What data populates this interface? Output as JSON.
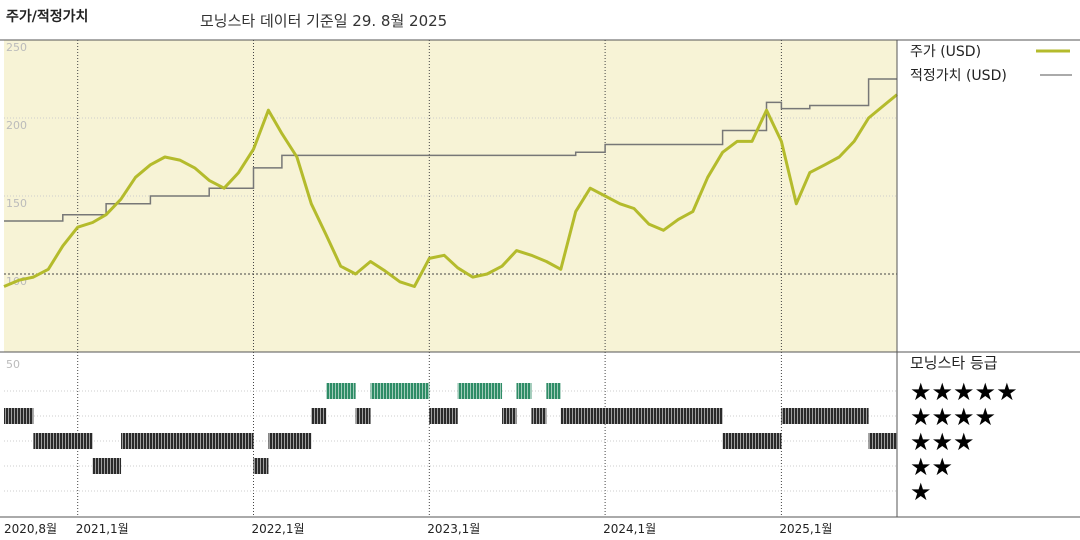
{
  "header": {
    "title": "주가/적정가치",
    "subtitle": "모닝스타 데이터 기준일 29. 8월 2025"
  },
  "colors": {
    "panel_bg": "#f7f3d6",
    "price_line": "#b4bb2c",
    "fair_value_line": "#777777",
    "star5_bar": "#2e8c66",
    "star_bar": "#2a2a2a",
    "grid": "#555555",
    "gridline_light": "#cccccc"
  },
  "chart_data": [
    {
      "type": "line",
      "name": "price-fair-value",
      "x_ticks": [
        "2020,8월",
        "2021,1월",
        "2022,1월",
        "2023,1월",
        "2024,1월",
        "2025,1월"
      ],
      "x_tick_dates": [
        "2020-08-01",
        "2021-01-01",
        "2022-01-01",
        "2023-01-01",
        "2024-01-01",
        "2025-01-01"
      ],
      "x_range": [
        "2020-08-01",
        "2025-08-29"
      ],
      "y_ticks": [
        "250",
        "200",
        "150",
        "100"
      ],
      "ylim": [
        50,
        250
      ],
      "grid": true,
      "legend": {
        "placement": "right",
        "entries": [
          "주가 (USD)",
          "적정가치 (USD)"
        ]
      },
      "series": [
        {
          "name": "주가 (USD)",
          "points": [
            [
              "2020-08-01",
              92
            ],
            [
              "2020-09-01",
              96
            ],
            [
              "2020-10-01",
              98
            ],
            [
              "2020-11-01",
              103
            ],
            [
              "2020-12-01",
              118
            ],
            [
              "2021-01-01",
              130
            ],
            [
              "2021-02-01",
              133
            ],
            [
              "2021-03-01",
              138
            ],
            [
              "2021-04-01",
              148
            ],
            [
              "2021-05-01",
              162
            ],
            [
              "2021-06-01",
              170
            ],
            [
              "2021-07-01",
              175
            ],
            [
              "2021-08-01",
              173
            ],
            [
              "2021-09-01",
              168
            ],
            [
              "2021-10-01",
              160
            ],
            [
              "2021-11-01",
              155
            ],
            [
              "2021-12-01",
              165
            ],
            [
              "2022-01-01",
              180
            ],
            [
              "2022-02-01",
              205
            ],
            [
              "2022-03-01",
              190
            ],
            [
              "2022-04-01",
              175
            ],
            [
              "2022-05-01",
              145
            ],
            [
              "2022-06-01",
              125
            ],
            [
              "2022-07-01",
              105
            ],
            [
              "2022-08-01",
              100
            ],
            [
              "2022-09-01",
              108
            ],
            [
              "2022-10-01",
              102
            ],
            [
              "2022-11-01",
              95
            ],
            [
              "2022-12-01",
              92
            ],
            [
              "2023-01-01",
              110
            ],
            [
              "2023-02-01",
              112
            ],
            [
              "2023-03-01",
              104
            ],
            [
              "2023-04-01",
              98
            ],
            [
              "2023-05-01",
              100
            ],
            [
              "2023-06-01",
              105
            ],
            [
              "2023-07-01",
              115
            ],
            [
              "2023-08-01",
              112
            ],
            [
              "2023-09-01",
              108
            ],
            [
              "2023-10-01",
              103
            ],
            [
              "2023-11-01",
              140
            ],
            [
              "2023-12-01",
              155
            ],
            [
              "2024-01-01",
              150
            ],
            [
              "2024-02-01",
              145
            ],
            [
              "2024-03-01",
              142
            ],
            [
              "2024-04-01",
              132
            ],
            [
              "2024-05-01",
              128
            ],
            [
              "2024-06-01",
              135
            ],
            [
              "2024-07-01",
              140
            ],
            [
              "2024-08-01",
              162
            ],
            [
              "2024-09-01",
              178
            ],
            [
              "2024-10-01",
              185
            ],
            [
              "2024-11-01",
              185
            ],
            [
              "2024-12-01",
              205
            ],
            [
              "2025-01-01",
              185
            ],
            [
              "2025-02-01",
              145
            ],
            [
              "2025-03-01",
              165
            ],
            [
              "2025-04-01",
              170
            ],
            [
              "2025-05-01",
              175
            ],
            [
              "2025-06-01",
              185
            ],
            [
              "2025-07-01",
              200
            ],
            [
              "2025-08-29",
              215
            ]
          ]
        },
        {
          "name": "적정가치 (USD)",
          "points": [
            [
              "2020-08-01",
              134
            ],
            [
              "2020-12-01",
              134
            ],
            [
              "2020-12-01",
              138
            ],
            [
              "2021-03-01",
              138
            ],
            [
              "2021-03-01",
              145
            ],
            [
              "2021-06-01",
              145
            ],
            [
              "2021-06-01",
              150
            ],
            [
              "2021-10-01",
              150
            ],
            [
              "2021-10-01",
              155
            ],
            [
              "2022-01-01",
              155
            ],
            [
              "2022-01-01",
              168
            ],
            [
              "2022-03-01",
              168
            ],
            [
              "2022-03-01",
              176
            ],
            [
              "2023-11-01",
              176
            ],
            [
              "2023-11-01",
              178
            ],
            [
              "2024-01-01",
              178
            ],
            [
              "2024-01-01",
              183
            ],
            [
              "2024-06-01",
              183
            ],
            [
              "2024-06-01",
              183
            ],
            [
              "2024-09-01",
              183
            ],
            [
              "2024-09-01",
              192
            ],
            [
              "2024-12-01",
              192
            ],
            [
              "2024-12-01",
              210
            ],
            [
              "2025-01-01",
              210
            ],
            [
              "2025-01-01",
              206
            ],
            [
              "2025-03-01",
              206
            ],
            [
              "2025-03-01",
              208
            ],
            [
              "2025-07-01",
              208
            ],
            [
              "2025-07-01",
              225
            ],
            [
              "2025-08-29",
              225
            ]
          ]
        }
      ]
    },
    {
      "type": "bar",
      "name": "morningstar-rating",
      "title": "모닝스타 등급",
      "y_ticks": [
        "50"
      ],
      "rows": [
        "★★★★★",
        "★★★★",
        "★★★",
        "★★",
        "★"
      ],
      "ratings": [
        {
          "start": "2020-08-01",
          "end": "2020-10-01",
          "stars": 4
        },
        {
          "start": "2020-10-01",
          "end": "2021-02-01",
          "stars": 3
        },
        {
          "start": "2021-02-01",
          "end": "2021-04-01",
          "stars": 2
        },
        {
          "start": "2021-04-01",
          "end": "2022-01-01",
          "stars": 3
        },
        {
          "start": "2022-01-01",
          "end": "2022-02-01",
          "stars": 2
        },
        {
          "start": "2022-02-01",
          "end": "2022-05-01",
          "stars": 3
        },
        {
          "start": "2022-05-01",
          "end": "2022-06-01",
          "stars": 4
        },
        {
          "start": "2022-06-01",
          "end": "2022-08-01",
          "stars": 5
        },
        {
          "start": "2022-08-01",
          "end": "2022-09-01",
          "stars": 4
        },
        {
          "start": "2022-09-01",
          "end": "2023-01-01",
          "stars": 5
        },
        {
          "start": "2023-01-01",
          "end": "2023-03-01",
          "stars": 4
        },
        {
          "start": "2023-03-01",
          "end": "2023-06-01",
          "stars": 5
        },
        {
          "start": "2023-06-01",
          "end": "2023-07-01",
          "stars": 4
        },
        {
          "start": "2023-07-01",
          "end": "2023-08-01",
          "stars": 5
        },
        {
          "start": "2023-08-01",
          "end": "2023-09-01",
          "stars": 4
        },
        {
          "start": "2023-09-01",
          "end": "2023-10-01",
          "stars": 5
        },
        {
          "start": "2023-10-01",
          "end": "2024-09-01",
          "stars": 4
        },
        {
          "start": "2024-09-01",
          "end": "2025-01-01",
          "stars": 3
        },
        {
          "start": "2025-01-01",
          "end": "2025-07-01",
          "stars": 4
        },
        {
          "start": "2025-07-01",
          "end": "2025-08-29",
          "stars": 3
        }
      ]
    }
  ]
}
